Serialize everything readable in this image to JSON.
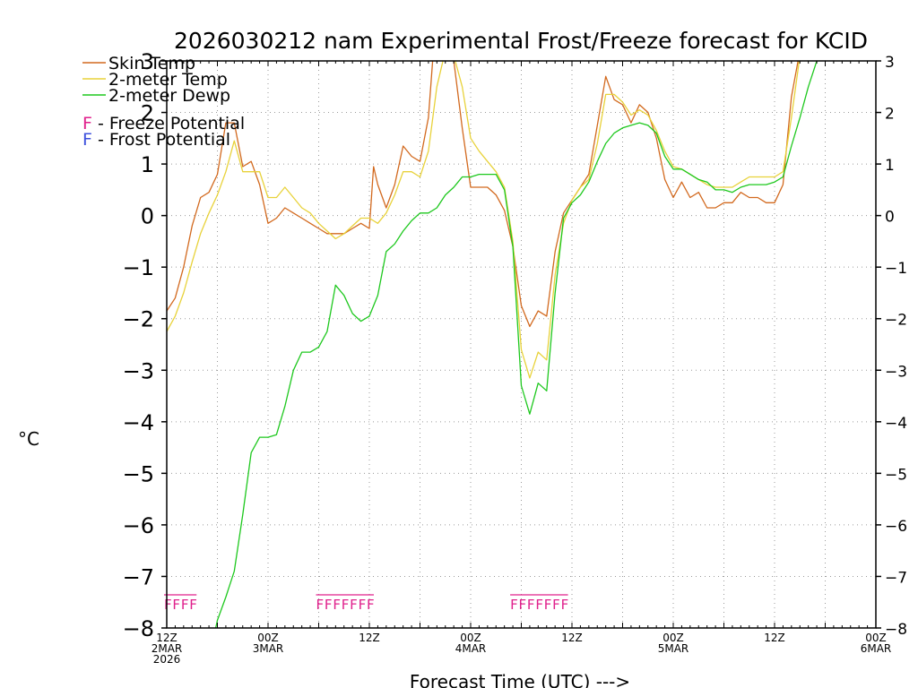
{
  "chart_data": {
    "type": "line",
    "title": "2026030212 nam Experimental Frost/Freeze forecast for KCID",
    "xlabel": "Forecast Time (UTC) --->",
    "ylabel": "°C",
    "xlim": [
      0,
      84
    ],
    "ylim": [
      -8,
      3
    ],
    "y_ticks": [
      -8,
      -7,
      -6,
      -5,
      -4,
      -3,
      -2,
      -1,
      0,
      1,
      2,
      3
    ],
    "y_tick_labels": [
      "−8",
      "−7",
      "−6",
      "−5",
      "−4",
      "−3",
      "−2",
      "−1",
      "0",
      "1",
      "2",
      "3"
    ],
    "x_ticks": [
      {
        "hour": 0,
        "lines": [
          "12Z",
          "2MAR",
          "2026"
        ]
      },
      {
        "hour": 12,
        "lines": [
          "00Z",
          "3MAR"
        ]
      },
      {
        "hour": 24,
        "lines": [
          "12Z"
        ]
      },
      {
        "hour": 36,
        "lines": [
          "00Z",
          "4MAR"
        ]
      },
      {
        "hour": 48,
        "lines": [
          "12Z"
        ]
      },
      {
        "hour": 60,
        "lines": [
          "00Z",
          "5MAR"
        ]
      },
      {
        "hour": 72,
        "lines": [
          "12Z"
        ]
      },
      {
        "hour": 84,
        "lines": [
          "00Z",
          "6MAR"
        ]
      }
    ],
    "grid": true,
    "series": [
      {
        "name": "Skin Temp",
        "color": "#d2691e",
        "points": [
          [
            0,
            -1.85
          ],
          [
            1,
            -1.6
          ],
          [
            2,
            -1.0
          ],
          [
            3,
            -0.2
          ],
          [
            4,
            0.35
          ],
          [
            5,
            0.45
          ],
          [
            6,
            0.8
          ],
          [
            7,
            1.8
          ],
          [
            8,
            1.8
          ],
          [
            9,
            0.95
          ],
          [
            10,
            1.05
          ],
          [
            11,
            0.6
          ],
          [
            12,
            -0.15
          ],
          [
            13,
            -0.05
          ],
          [
            14,
            0.15
          ],
          [
            15,
            0.05
          ],
          [
            16,
            -0.05
          ],
          [
            17,
            -0.15
          ],
          [
            18,
            -0.25
          ],
          [
            19,
            -0.35
          ],
          [
            20,
            -0.35
          ],
          [
            21,
            -0.35
          ],
          [
            22,
            -0.25
          ],
          [
            23,
            -0.15
          ],
          [
            24,
            -0.25
          ],
          [
            24.5,
            0.95
          ],
          [
            25,
            0.6
          ],
          [
            26,
            0.15
          ],
          [
            27,
            0.6
          ],
          [
            28,
            1.35
          ],
          [
            29,
            1.15
          ],
          [
            30,
            1.05
          ],
          [
            31,
            1.9
          ],
          [
            31.5,
            3.0
          ],
          [
            32,
            3.2
          ],
          [
            33,
            3.2
          ],
          [
            34,
            3.0
          ],
          [
            35,
            1.7
          ],
          [
            36,
            0.55
          ],
          [
            37,
            0.55
          ],
          [
            38,
            0.55
          ],
          [
            39,
            0.4
          ],
          [
            40,
            0.1
          ],
          [
            41,
            -0.6
          ],
          [
            42,
            -1.75
          ],
          [
            43,
            -2.15
          ],
          [
            44,
            -1.85
          ],
          [
            45,
            -1.95
          ],
          [
            46,
            -0.7
          ],
          [
            47,
            0.05
          ],
          [
            48,
            0.3
          ],
          [
            49,
            0.55
          ],
          [
            50,
            0.8
          ],
          [
            51,
            1.75
          ],
          [
            52,
            2.7
          ],
          [
            53,
            2.25
          ],
          [
            54,
            2.15
          ],
          [
            55,
            1.8
          ],
          [
            56,
            2.15
          ],
          [
            57,
            2.0
          ],
          [
            58,
            1.5
          ],
          [
            59,
            0.7
          ],
          [
            60,
            0.35
          ],
          [
            61,
            0.65
          ],
          [
            62,
            0.35
          ],
          [
            63,
            0.45
          ],
          [
            64,
            0.15
          ],
          [
            65,
            0.15
          ],
          [
            66,
            0.25
          ],
          [
            67,
            0.25
          ],
          [
            68,
            0.45
          ],
          [
            69,
            0.35
          ],
          [
            70,
            0.35
          ],
          [
            71,
            0.25
          ],
          [
            72,
            0.25
          ],
          [
            73,
            0.6
          ],
          [
            74,
            2.3
          ],
          [
            75,
            3.2
          ]
        ]
      },
      {
        "name": "2-meter Temp",
        "color": "#e8d23a",
        "points": [
          [
            0,
            -2.25
          ],
          [
            1,
            -1.95
          ],
          [
            2,
            -1.5
          ],
          [
            3,
            -0.9
          ],
          [
            4,
            -0.35
          ],
          [
            5,
            0.05
          ],
          [
            6,
            0.4
          ],
          [
            7,
            0.85
          ],
          [
            8,
            1.45
          ],
          [
            9,
            0.85
          ],
          [
            10,
            0.85
          ],
          [
            11,
            0.85
          ],
          [
            12,
            0.35
          ],
          [
            13,
            0.35
          ],
          [
            14,
            0.55
          ],
          [
            15,
            0.35
          ],
          [
            16,
            0.15
          ],
          [
            17,
            0.05
          ],
          [
            18,
            -0.15
          ],
          [
            19,
            -0.3
          ],
          [
            20,
            -0.45
          ],
          [
            21,
            -0.35
          ],
          [
            22,
            -0.2
          ],
          [
            23,
            -0.05
          ],
          [
            24,
            -0.05
          ],
          [
            25,
            -0.15
          ],
          [
            26,
            0.05
          ],
          [
            27,
            0.4
          ],
          [
            28,
            0.85
          ],
          [
            29,
            0.85
          ],
          [
            30,
            0.75
          ],
          [
            31,
            1.25
          ],
          [
            32,
            2.5
          ],
          [
            33,
            3.2
          ],
          [
            34,
            3.1
          ],
          [
            35,
            2.5
          ],
          [
            36,
            1.5
          ],
          [
            37,
            1.25
          ],
          [
            38,
            1.05
          ],
          [
            39,
            0.85
          ],
          [
            40,
            0.55
          ],
          [
            41,
            -0.5
          ],
          [
            42,
            -2.6
          ],
          [
            43,
            -3.15
          ],
          [
            44,
            -2.65
          ],
          [
            45,
            -2.8
          ],
          [
            46,
            -1.15
          ],
          [
            47,
            -0.15
          ],
          [
            48,
            0.3
          ],
          [
            49,
            0.55
          ],
          [
            50,
            0.7
          ],
          [
            51,
            1.4
          ],
          [
            52,
            2.35
          ],
          [
            53,
            2.35
          ],
          [
            54,
            2.2
          ],
          [
            55,
            1.95
          ],
          [
            56,
            2.05
          ],
          [
            57,
            1.95
          ],
          [
            58,
            1.65
          ],
          [
            59,
            1.25
          ],
          [
            60,
            0.95
          ],
          [
            61,
            0.9
          ],
          [
            62,
            0.8
          ],
          [
            63,
            0.7
          ],
          [
            64,
            0.6
          ],
          [
            65,
            0.55
          ],
          [
            66,
            0.55
          ],
          [
            67,
            0.55
          ],
          [
            68,
            0.65
          ],
          [
            69,
            0.75
          ],
          [
            70,
            0.75
          ],
          [
            71,
            0.75
          ],
          [
            72,
            0.75
          ],
          [
            73,
            0.85
          ],
          [
            74,
            1.9
          ],
          [
            75,
            3.1
          ]
        ]
      },
      {
        "name": "2-meter Dewp",
        "color": "#1ec81e",
        "points": [
          [
            5.8,
            -8.0
          ],
          [
            6,
            -7.85
          ],
          [
            7,
            -7.4
          ],
          [
            8,
            -6.9
          ],
          [
            9,
            -5.8
          ],
          [
            10,
            -4.6
          ],
          [
            11,
            -4.3
          ],
          [
            12,
            -4.3
          ],
          [
            13,
            -4.25
          ],
          [
            14,
            -3.7
          ],
          [
            15,
            -3.0
          ],
          [
            16,
            -2.65
          ],
          [
            17,
            -2.65
          ],
          [
            18,
            -2.55
          ],
          [
            19,
            -2.25
          ],
          [
            20,
            -1.35
          ],
          [
            21,
            -1.55
          ],
          [
            22,
            -1.9
          ],
          [
            23,
            -2.05
          ],
          [
            24,
            -1.95
          ],
          [
            25,
            -1.55
          ],
          [
            26,
            -0.7
          ],
          [
            27,
            -0.55
          ],
          [
            28,
            -0.3
          ],
          [
            29,
            -0.1
          ],
          [
            30,
            0.05
          ],
          [
            31,
            0.05
          ],
          [
            32,
            0.15
          ],
          [
            33,
            0.4
          ],
          [
            34,
            0.55
          ],
          [
            35,
            0.75
          ],
          [
            36,
            0.75
          ],
          [
            37,
            0.8
          ],
          [
            38,
            0.8
          ],
          [
            39,
            0.8
          ],
          [
            40,
            0.5
          ],
          [
            41,
            -0.6
          ],
          [
            42,
            -3.3
          ],
          [
            43,
            -3.85
          ],
          [
            44,
            -3.25
          ],
          [
            45,
            -3.4
          ],
          [
            46,
            -1.5
          ],
          [
            47,
            -0.05
          ],
          [
            48,
            0.25
          ],
          [
            49,
            0.4
          ],
          [
            50,
            0.65
          ],
          [
            51,
            1.05
          ],
          [
            52,
            1.4
          ],
          [
            53,
            1.6
          ],
          [
            54,
            1.7
          ],
          [
            55,
            1.75
          ],
          [
            56,
            1.8
          ],
          [
            57,
            1.75
          ],
          [
            58,
            1.6
          ],
          [
            59,
            1.15
          ],
          [
            60,
            0.9
          ],
          [
            61,
            0.9
          ],
          [
            62,
            0.8
          ],
          [
            63,
            0.7
          ],
          [
            64,
            0.65
          ],
          [
            65,
            0.5
          ],
          [
            66,
            0.5
          ],
          [
            67,
            0.45
          ],
          [
            68,
            0.55
          ],
          [
            69,
            0.6
          ],
          [
            70,
            0.6
          ],
          [
            71,
            0.6
          ],
          [
            72,
            0.65
          ],
          [
            73,
            0.75
          ],
          [
            74,
            1.35
          ],
          [
            75,
            1.9
          ],
          [
            76,
            2.5
          ],
          [
            77,
            3.0
          ]
        ]
      }
    ],
    "freeze_potential_hours": [
      [
        0,
        3
      ],
      [
        18,
        24
      ],
      [
        41,
        47
      ]
    ],
    "freeze_glyph": "F",
    "freeze_color": "#e0208c",
    "frost_color": "#3c50dc"
  },
  "legend": {
    "line_entries": [
      "Skin Temp",
      "2-meter Temp",
      "2-meter Dewp"
    ],
    "freeze_label": "F - Freeze Potential",
    "frost_label": "F - Frost Potential"
  }
}
